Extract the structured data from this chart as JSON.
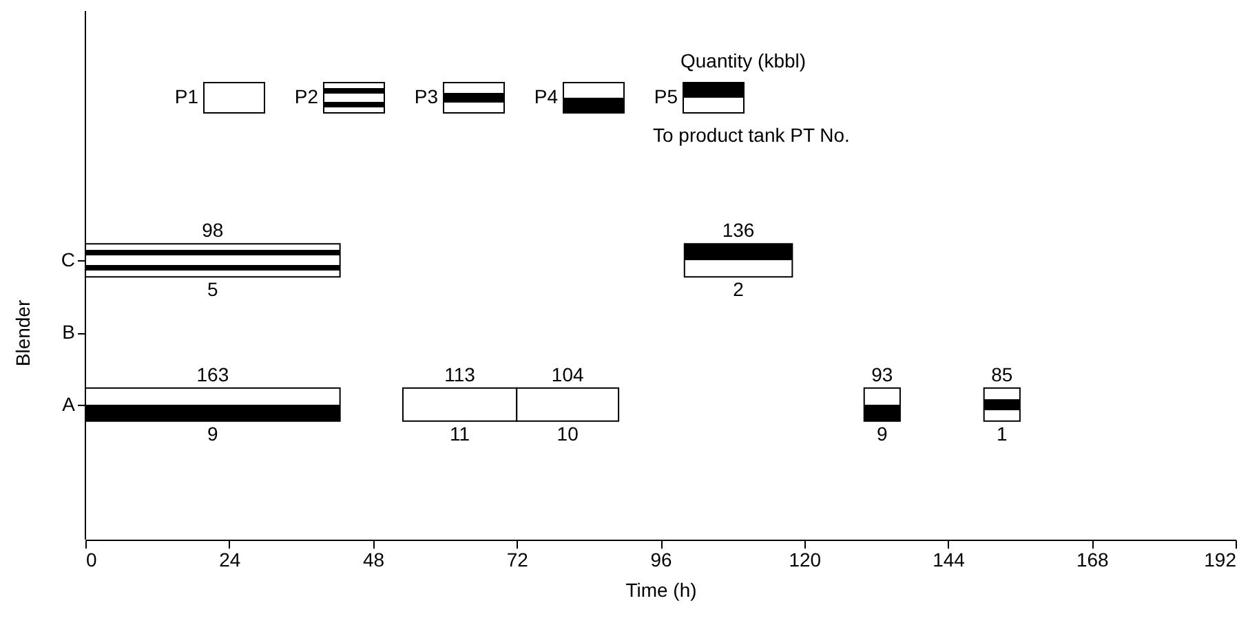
{
  "chart_data": {
    "type": "bar",
    "orientation": "horizontal",
    "xlabel": "Time (h)",
    "ylabel": "Blender",
    "categories": [
      "C",
      "B",
      "A"
    ],
    "xlim": [
      0,
      192
    ],
    "xticks": [
      0,
      24,
      48,
      72,
      96,
      120,
      144,
      168,
      192
    ],
    "grid": false,
    "legend": "top",
    "series": [
      {
        "name": "P1",
        "color": "#000000",
        "values": [
          null,
          null,
          19
        ],
        "base": [
          null,
          null,
          53
        ]
      },
      {
        "color": "#000000",
        "values": [
          null,
          null,
          17
        ],
        "base": [
          null,
          null,
          72
        ]
      },
      {
        "name": "P2",
        "color": "#000000",
        "values": [
          42.5,
          null,
          null
        ],
        "base": [
          0,
          null,
          null
        ]
      },
      {
        "name": "P3",
        "color": "#000000",
        "values": [
          null,
          null,
          6
        ],
        "base": [
          null,
          null,
          150
        ]
      },
      {
        "name": "P4",
        "color": "#000000",
        "values": [
          null,
          null,
          42.5
        ],
        "base": [
          null,
          null,
          0
        ]
      },
      {
        "color": "#000000",
        "values": [
          null,
          null,
          6
        ],
        "base": [
          null,
          null,
          130
        ]
      },
      {
        "name": "P5",
        "color": "#000000",
        "values": [
          18,
          null,
          null
        ],
        "base": [
          100,
          null,
          null
        ]
      }
    ],
    "annotations": [
      "Quantity (kbbl)",
      "To product tank PT No.",
      "113",
      "104",
      "98",
      "85",
      "163",
      "93",
      "136",
      "11",
      "10",
      "5",
      "1",
      "9",
      "9",
      "2"
    ]
  }
}
